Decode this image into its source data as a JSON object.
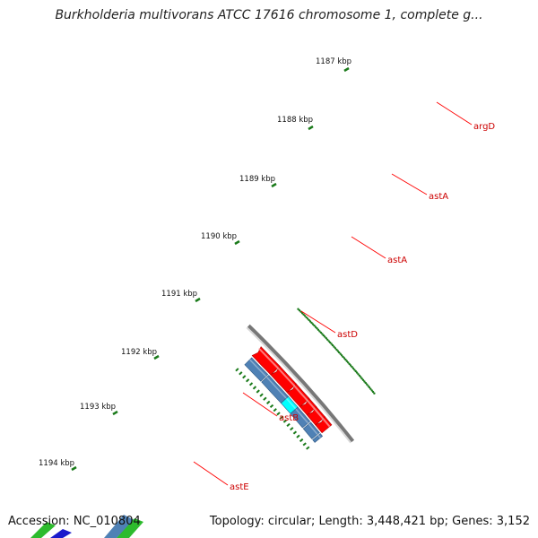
{
  "title": "Burkholderia multivorans ATCC 17616 chromosome 1, complete g...",
  "footer": {
    "accession": "Accession: NC_010804",
    "topology": "Topology: circular; Length: 3,448,421 bp; Genes: 3,152"
  },
  "kbp_ticks": [
    "1187 kbp",
    "1188 kbp",
    "1189 kbp",
    "1190 kbp",
    "1191 kbp",
    "1192 kbp",
    "1193 kbp",
    "1194 kbp"
  ],
  "genes": [
    {
      "label": "argD",
      "color": "#4f81b5"
    },
    {
      "label": "astA",
      "color": "#4f81b5"
    },
    {
      "label": "astA",
      "color": "#4f81b5"
    },
    {
      "label": "astD",
      "color": "#00ffff"
    },
    {
      "label": "astB",
      "color": "#4f81b5"
    },
    {
      "label": "astE",
      "color": "#4f81b5"
    }
  ],
  "colors": {
    "forward_cds": "#ff0000",
    "reverse_cds": "#4f81b5",
    "label_text": "#cc0000",
    "leader_line": "#ff0000",
    "tick_marks": "#1a7a1a",
    "backbone": "#888888"
  }
}
